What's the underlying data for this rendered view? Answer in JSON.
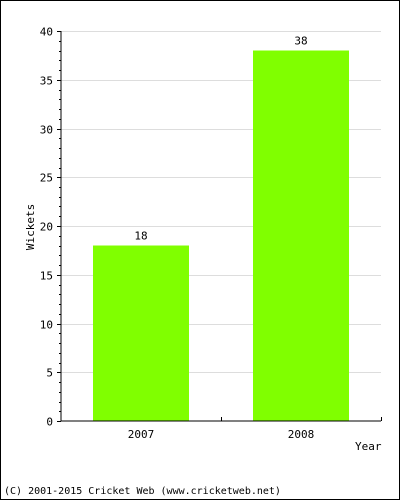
{
  "chart_data": {
    "type": "bar",
    "categories": [
      "2007",
      "2008"
    ],
    "values": [
      18,
      38
    ],
    "data_labels": [
      "18",
      "38"
    ],
    "title": "",
    "xlabel": "Year",
    "ylabel": "Wickets",
    "ylim": [
      0,
      40
    ],
    "yticks": [
      "0",
      "5",
      "10",
      "15",
      "20",
      "25",
      "30",
      "35",
      "40"
    ],
    "ytick_values": [
      0,
      5,
      10,
      15,
      20,
      25,
      30,
      35,
      40
    ],
    "grid": true,
    "bar_color": "#80ff00",
    "grid_color": "#dddddd",
    "legend": "none"
  },
  "footer": {
    "copyright": "(C) 2001-2015 Cricket Web (www.cricketweb.net)"
  }
}
